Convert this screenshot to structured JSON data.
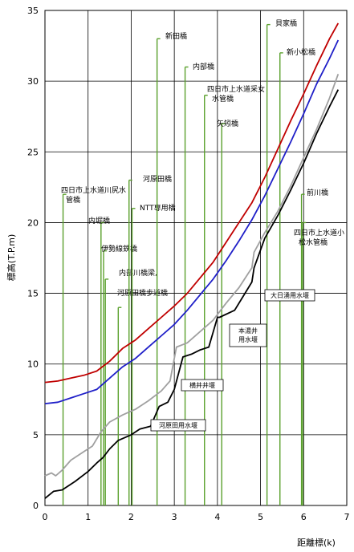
{
  "chart_data": {
    "type": "line",
    "xlabel": "距離標(k)",
    "ylabel": "標高(T.P.m)",
    "xlim": [
      0,
      7
    ],
    "ylim": [
      0,
      35
    ],
    "xticks": [
      0,
      1,
      2,
      3,
      4,
      5,
      6,
      7
    ],
    "yticks": [
      0,
      5,
      10,
      15,
      20,
      25,
      30,
      35
    ],
    "grid": true,
    "colors": {
      "red": "#c00000",
      "blue": "#1f1fc8",
      "gray": "#a0a0a0",
      "black": "#000000",
      "green": "#5aa02c"
    },
    "series": [
      {
        "color": "red",
        "x": [
          0,
          0.3,
          0.6,
          0.9,
          1.2,
          1.5,
          1.8,
          2.1,
          2.4,
          2.7,
          3.0,
          3.3,
          3.6,
          3.9,
          4.2,
          4.5,
          4.8,
          5.1,
          5.4,
          5.7,
          6.0,
          6.3,
          6.6,
          6.8
        ],
        "y": [
          8.7,
          8.8,
          9.0,
          9.2,
          9.5,
          10.2,
          11.1,
          11.7,
          12.5,
          13.3,
          14.1,
          15.0,
          16.1,
          17.2,
          18.6,
          20.0,
          21.4,
          23.2,
          25.2,
          27.2,
          29.1,
          31.1,
          33.0,
          34.1
        ]
      },
      {
        "color": "blue",
        "x": [
          0,
          0.3,
          0.6,
          0.9,
          1.2,
          1.5,
          1.8,
          2.1,
          2.4,
          2.7,
          3.0,
          3.3,
          3.6,
          3.9,
          4.2,
          4.5,
          4.8,
          5.1,
          5.4,
          5.7,
          6.0,
          6.3,
          6.6,
          6.8
        ],
        "y": [
          7.2,
          7.3,
          7.6,
          7.9,
          8.2,
          9.0,
          9.8,
          10.4,
          11.2,
          12.0,
          12.8,
          13.8,
          14.9,
          16.0,
          17.3,
          18.7,
          20.2,
          21.9,
          23.8,
          25.7,
          27.7,
          29.8,
          31.6,
          32.9
        ]
      },
      {
        "color": "gray",
        "x": [
          0,
          0.15,
          0.25,
          0.4,
          0.6,
          0.9,
          1.1,
          1.3,
          1.5,
          1.8,
          2.1,
          2.4,
          2.7,
          2.9,
          3.05,
          3.3,
          3.6,
          3.9,
          4.2,
          4.5,
          4.8,
          4.85,
          5.1,
          5.4,
          5.7,
          6.0,
          6.3,
          6.6,
          6.8
        ],
        "y": [
          2.1,
          2.3,
          2.1,
          2.5,
          3.2,
          3.8,
          4.2,
          5.2,
          5.9,
          6.4,
          6.8,
          7.4,
          8.1,
          8.8,
          11.2,
          11.5,
          12.3,
          13.1,
          14.3,
          15.4,
          16.8,
          17.9,
          19.3,
          20.8,
          22.6,
          24.6,
          26.6,
          28.8,
          30.5
        ]
      },
      {
        "color": "black",
        "x": [
          0,
          0.2,
          0.4,
          0.7,
          1.0,
          1.2,
          1.35,
          1.5,
          1.7,
          1.85,
          2.0,
          2.2,
          2.45,
          2.65,
          2.85,
          3.0,
          3.2,
          3.4,
          3.6,
          3.8,
          4.0,
          4.05,
          4.4,
          4.8,
          4.85,
          5.1,
          5.4,
          5.7,
          6.0,
          6.3,
          6.6,
          6.8
        ],
        "y": [
          0.5,
          1.0,
          1.1,
          1.7,
          2.4,
          3.0,
          3.4,
          4.0,
          4.6,
          4.8,
          5.0,
          5.4,
          5.6,
          7.0,
          7.3,
          8.2,
          10.5,
          10.7,
          11.0,
          11.2,
          13.3,
          13.3,
          13.8,
          15.8,
          16.8,
          18.9,
          20.5,
          22.3,
          24.2,
          26.3,
          28.2,
          29.4
        ]
      }
    ],
    "bridges": [
      {
        "name": "四日市上水道川尻水管橋",
        "x": 0.42,
        "y_top": 22.0
      },
      {
        "name": "内堀橋",
        "x": 1.3,
        "y_top": 20.0
      },
      {
        "name": "伊勢線鉄橋",
        "x": 1.36,
        "y_top": 18.0
      },
      {
        "name": "内部川橋梁,",
        "x": 1.4,
        "y_top": 16.0
      },
      {
        "name": "河原田橋歩道橋",
        "x": 1.7,
        "y_top": 14.0
      },
      {
        "name": "河原田橋",
        "x": 1.95,
        "y_top": 23.0
      },
      {
        "name": "NTT専用橋",
        "x": 2.02,
        "y_top": 21.0
      },
      {
        "name": "新田橋",
        "x": 2.6,
        "y_top": 33.0
      },
      {
        "name": "内部橋",
        "x": 3.25,
        "y_top": 31.0
      },
      {
        "name": "四日市上水道采女水管橋",
        "x": 3.7,
        "y_top": 29.0
      },
      {
        "name": "矢矧橋",
        "x": 4.1,
        "y_top": 27.0
      },
      {
        "name": "貝家橋",
        "x": 5.15,
        "y_top": 34.0
      },
      {
        "name": "新小松橋",
        "x": 5.45,
        "y_top": 32.0
      },
      {
        "name": "前川橋",
        "x": 5.95,
        "y_top": 22.0
      },
      {
        "name": "四日市上水道小松水管橋",
        "x": 5.98,
        "y_top": 20.0
      }
    ],
    "weirs": [
      {
        "name": "大日湧用水堰",
        "x": 5.1
      },
      {
        "name": "本湯井用水堰",
        "x": 4.35
      },
      {
        "name": "横井井堰",
        "x": 3.15
      },
      {
        "name": "河原田用水堰",
        "x": 2.6
      }
    ]
  }
}
